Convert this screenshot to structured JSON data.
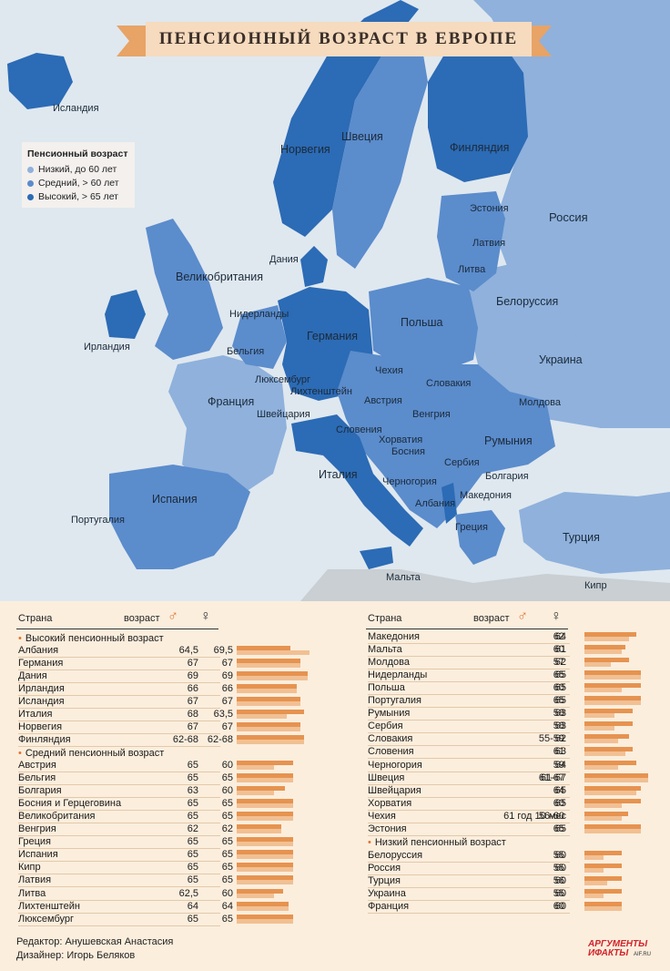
{
  "title": "ПЕНСИОННЫЙ ВОЗРАСТ В ЕВРОПЕ",
  "colors": {
    "low": "#8fb1dc",
    "medium": "#5b8ccc",
    "high": "#2c6bb5",
    "sea": "#dfe8ef",
    "banner": "#f6dbbe",
    "male_bar": "#e69350",
    "female_bar": "#f1c094",
    "bullet": "#e0742b"
  },
  "legend": {
    "title": "Пенсионный возраст",
    "items": [
      {
        "label": "Низкий, до 60 лет",
        "color": "#8fb1dc"
      },
      {
        "label": "Средний, > 60 лет",
        "color": "#5b8ccc"
      },
      {
        "label": "Высокий, > 65 лет",
        "color": "#2c6bb5"
      }
    ]
  },
  "map_labels": {
    "iceland": "Исландия",
    "norway": "Норвегия",
    "sweden": "Швеция",
    "finland": "Финляндия",
    "russia": "Россия",
    "estonia": "Эстония",
    "latvia": "Латвия",
    "lithuania": "Литва",
    "denmark": "Дания",
    "uk": "Великобритания",
    "ireland": "Ирландия",
    "netherlands": "Нидерланды",
    "belgium": "Бельгия",
    "germany": "Германия",
    "poland": "Польша",
    "belarus": "Белоруссия",
    "ukraine": "Украина",
    "luxembourg": "Люксембург",
    "czech": "Чехия",
    "liechtenstein": "Лихтенштейн",
    "slovakia": "Словакия",
    "france": "Франция",
    "switzerland": "Швейцария",
    "austria": "Австрия",
    "moldova": "Молдова",
    "hungary": "Венгрия",
    "slovenia": "Словения",
    "croatia": "Хорватия",
    "romania": "Румыния",
    "bosnia": "Босния",
    "serbia": "Сербия",
    "italy": "Италия",
    "bulgaria": "Болгария",
    "montenegro": "Черногория",
    "macedonia": "Македония",
    "albania": "Албания",
    "spain": "Испания",
    "portugal": "Португалия",
    "greece": "Греция",
    "turkey": "Турция",
    "malta": "Мальта",
    "cyprus": "Кипр"
  },
  "table": {
    "col_country": "Страна",
    "col_age": "возраст",
    "male_symbol": "♂",
    "female_symbol": "♀",
    "group_high": "Высокий пенсионный возраст",
    "group_medium": "Средний пенсионный возраст",
    "group_low": "Низкий пенсионный возраст",
    "high": [
      {
        "country": "Албания",
        "male": "64,5",
        "female": "69,5",
        "mv": 64.5,
        "fv": 69.5
      },
      {
        "country": "Германия",
        "male": "67",
        "female": "67",
        "mv": 67,
        "fv": 67
      },
      {
        "country": "Дания",
        "male": "69",
        "female": "69",
        "mv": 69,
        "fv": 69
      },
      {
        "country": "Ирландия",
        "male": "66",
        "female": "66",
        "mv": 66,
        "fv": 66
      },
      {
        "country": "Исландия",
        "male": "67",
        "female": "67",
        "mv": 67,
        "fv": 67
      },
      {
        "country": "Италия",
        "male": "68",
        "female": "63,5",
        "mv": 68,
        "fv": 63.5
      },
      {
        "country": "Норвегия",
        "male": "67",
        "female": "67",
        "mv": 67,
        "fv": 67
      },
      {
        "country": "Финляндия",
        "male": "62-68",
        "female": "62-68",
        "mv": 68,
        "fv": 68
      }
    ],
    "medium_left": [
      {
        "country": "Австрия",
        "male": "65",
        "female": "60",
        "mv": 65,
        "fv": 60
      },
      {
        "country": "Бельгия",
        "male": "65",
        "female": "65",
        "mv": 65,
        "fv": 65
      },
      {
        "country": "Болгария",
        "male": "63",
        "female": "60",
        "mv": 63,
        "fv": 60
      },
      {
        "country": "Босния и Герцеговина",
        "male": "65",
        "female": "65",
        "mv": 65,
        "fv": 65
      },
      {
        "country": "Великобритания",
        "male": "65",
        "female": "65",
        "mv": 65,
        "fv": 65
      },
      {
        "country": "Венгрия",
        "male": "62",
        "female": "62",
        "mv": 62,
        "fv": 62
      },
      {
        "country": "Греция",
        "male": "65",
        "female": "65",
        "mv": 65,
        "fv": 65
      },
      {
        "country": "Испания",
        "male": "65",
        "female": "65",
        "mv": 65,
        "fv": 65
      },
      {
        "country": "Кипр",
        "male": "65",
        "female": "65",
        "mv": 65,
        "fv": 65
      },
      {
        "country": "Латвия",
        "male": "65",
        "female": "65",
        "mv": 65,
        "fv": 65
      },
      {
        "country": "Литва",
        "male": "62,5",
        "female": "60",
        "mv": 62.5,
        "fv": 60
      },
      {
        "country": "Лихтенштейн",
        "male": "64",
        "female": "64",
        "mv": 64,
        "fv": 64
      },
      {
        "country": "Люксембург",
        "male": "65",
        "female": "65",
        "mv": 65,
        "fv": 65
      }
    ],
    "medium_right": [
      {
        "country": "Македония",
        "male": "64",
        "female": "62",
        "mv": 64,
        "fv": 62
      },
      {
        "country": "Мальта",
        "male": "61",
        "female": "60",
        "mv": 61,
        "fv": 60
      },
      {
        "country": "Молдова",
        "male": "62",
        "female": "57",
        "mv": 62,
        "fv": 57
      },
      {
        "country": "Нидерланды",
        "male": "65",
        "female": "65",
        "mv": 65,
        "fv": 65
      },
      {
        "country": "Польша",
        "male": "65",
        "female": "60",
        "mv": 65,
        "fv": 60
      },
      {
        "country": "Португалия",
        "male": "65",
        "female": "65",
        "mv": 65,
        "fv": 65
      },
      {
        "country": "Румыния",
        "male": "63",
        "female": "58",
        "mv": 63,
        "fv": 58
      },
      {
        "country": "Сербия",
        "male": "63",
        "female": "58",
        "mv": 63,
        "fv": 58
      },
      {
        "country": "Словакия",
        "male": "62",
        "female": "55-59",
        "mv": 62,
        "fv": 59
      },
      {
        "country": "Словения",
        "male": "63",
        "female": "61",
        "mv": 63,
        "fv": 61
      },
      {
        "country": "Черногория",
        "male": "64",
        "female": "59",
        "mv": 64,
        "fv": 59
      },
      {
        "country": "Швеция",
        "male": "61-67",
        "female": "61-67",
        "mv": 67,
        "fv": 67
      },
      {
        "country": "Швейцария",
        "male": "65",
        "female": "64",
        "mv": 65,
        "fv": 64
      },
      {
        "country": "Хорватия",
        "male": "65",
        "female": "60",
        "mv": 65,
        "fv": 60
      },
      {
        "country": "Чехия",
        "male": "61 год 10 мес",
        "female": "56-60",
        "mv": 61.8,
        "fv": 60
      },
      {
        "country": "Эстония",
        "male": "65",
        "female": "65",
        "mv": 65,
        "fv": 65
      }
    ],
    "low": [
      {
        "country": "Белоруссия",
        "male": "60",
        "female": "55",
        "mv": 60,
        "fv": 55
      },
      {
        "country": "Россия",
        "male": "60",
        "female": "55",
        "mv": 60,
        "fv": 55
      },
      {
        "country": "Турция",
        "male": "60",
        "female": "56",
        "mv": 60,
        "fv": 56
      },
      {
        "country": "Украина",
        "male": "60",
        "female": "55",
        "mv": 60,
        "fv": 55
      },
      {
        "country": "Франция",
        "male": "60",
        "female": "60",
        "mv": 60,
        "fv": 60
      }
    ]
  },
  "credits": {
    "editor": "Редактор: Анушевская Анастасия",
    "designer": "Дизайнер: Игорь Беляков"
  },
  "logo": {
    "line1": "АРГУМЕНТЫ",
    "line2": "ИФАКТЫ",
    "site": "AIF.RU"
  }
}
